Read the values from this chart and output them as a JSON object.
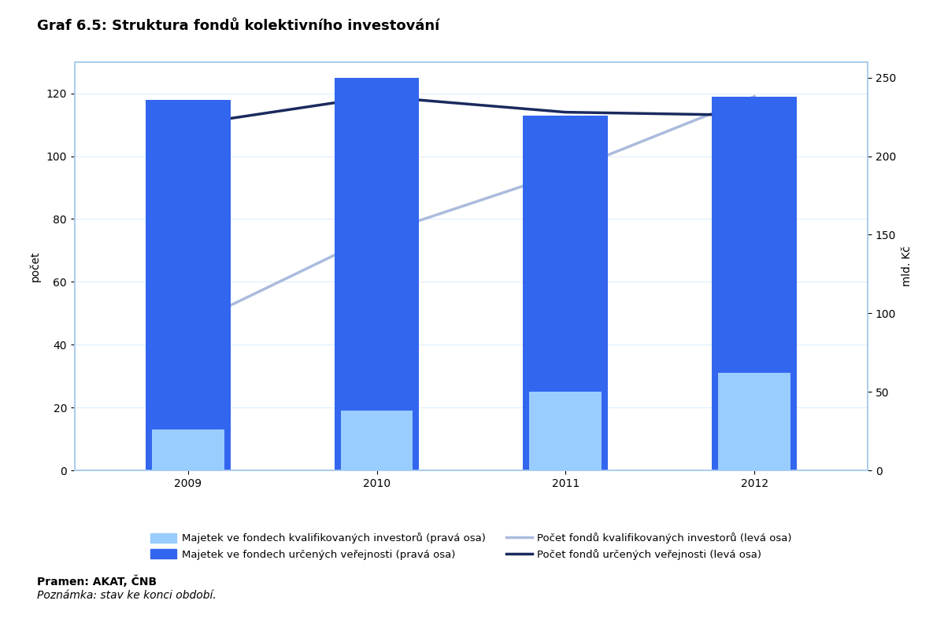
{
  "title": "Graf 6.5: Struktura fondů kolektivního investování",
  "years": [
    2009,
    2010,
    2011,
    2012
  ],
  "bar_width": 0.45,
  "left_ylabel": "počet",
  "right_ylabel": "mld. Kč",
  "left_ylim": [
    0,
    130
  ],
  "right_ylim": [
    0,
    260
  ],
  "left_yticks": [
    0,
    20,
    40,
    60,
    80,
    100,
    120
  ],
  "right_yticks": [
    0,
    50,
    100,
    150,
    200,
    250
  ],
  "majetek_kvalif_mld": [
    26,
    38,
    50,
    62
  ],
  "majetek_verejnost_mld": [
    236,
    250,
    226,
    238
  ],
  "pocet_kvalif": [
    46,
    75,
    95,
    119
  ],
  "pocet_verejnost": [
    110,
    119,
    114,
    113
  ],
  "bar_color_kvalif": "#99ccff",
  "bar_color_verejnost": "#3366ee",
  "line_color_kvalif": "#aabbdd",
  "line_color_verejnost": "#1a2a5e",
  "background_color": "#ffffff",
  "plot_bg_color": "#ffffff",
  "border_color": "#aaccee",
  "grid_color": "#ddeeff",
  "legend_kvalif_bar": "Majetek ve fondech kvalifikovaných investorů (pravá osa)",
  "legend_verejnost_bar": "Majetek ve fondech určených veřejnosti (pravá osa)",
  "legend_kvalif_line": "Počet fondů kvalifikovaných investorů (levá osa)",
  "legend_verejnost_line": "Počet fondů určených veřejnosti (levá osa)",
  "source_text": "Pramen: AKAT, ČNB",
  "note_text": "Poznámka: stav ke konci období.",
  "title_fontsize": 13,
  "axis_label_fontsize": 10,
  "tick_fontsize": 10,
  "legend_fontsize": 9.5,
  "source_fontsize": 10
}
